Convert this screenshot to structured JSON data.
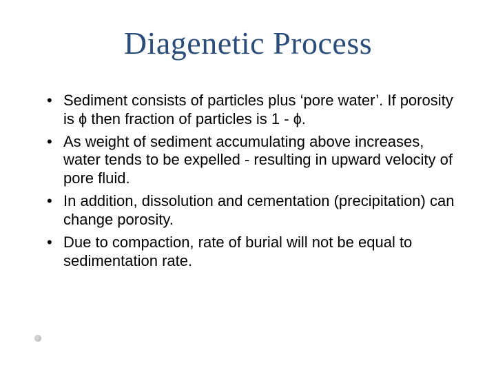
{
  "title": {
    "text": "Diagenetic Process",
    "color": "#2a4d7a",
    "font_family": "Georgia, 'Times New Roman', serif",
    "font_size_pt": 34
  },
  "body": {
    "text_color": "#000000",
    "font_family": "Arial, Helvetica, sans-serif",
    "font_size_pt": 17,
    "bullets": [
      "Sediment consists of particles plus ‘pore water’. If porosity is ɸ then fraction of particles is 1 - ɸ.",
      "As weight of sediment accumulating above increases, water tends to be expelled - resulting in upward velocity of pore fluid.",
      "In addition, dissolution and cementation (precipitation) can change porosity.",
      "Due to compaction, rate of burial will not be equal to sedimentation rate."
    ]
  },
  "background_color": "#ffffff",
  "decoration": {
    "dot_color": "#c0c0c0"
  }
}
